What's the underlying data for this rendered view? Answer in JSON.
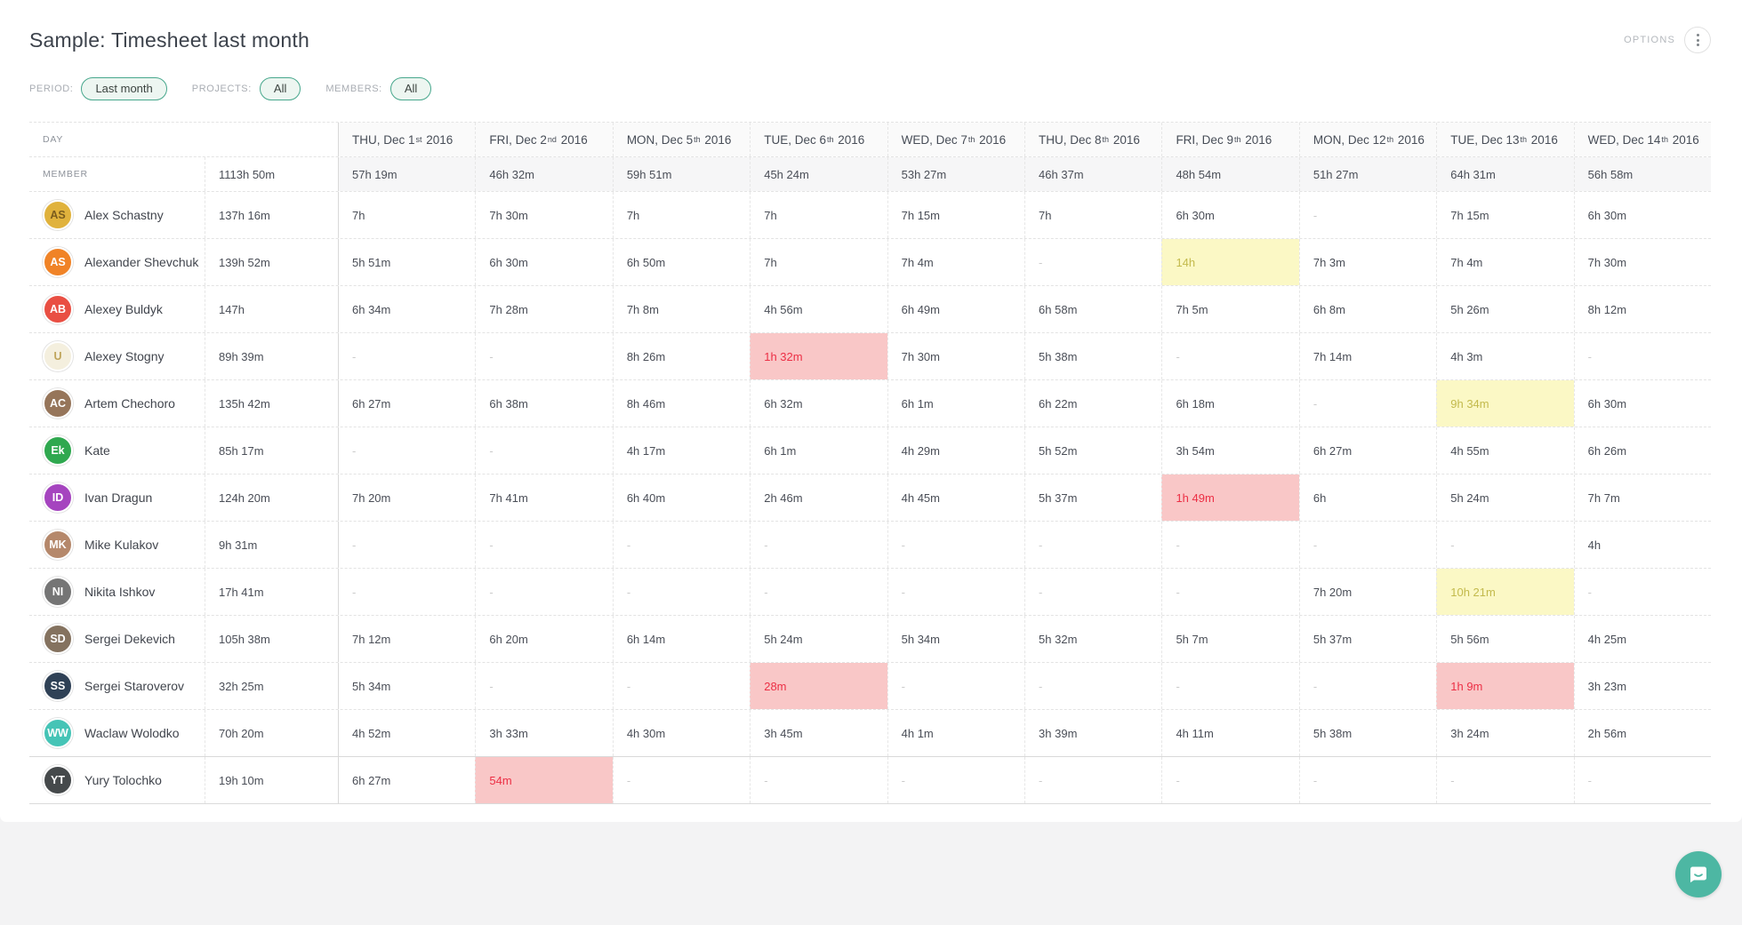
{
  "page": {
    "title": "Sample: Timesheet last month",
    "options_label": "OPTIONS"
  },
  "filters": [
    {
      "label": "PERIOD:",
      "value": "Last month"
    },
    {
      "label": "PROJECTS:",
      "value": "All"
    },
    {
      "label": "MEMBERS:",
      "value": "All"
    }
  ],
  "table": {
    "day_label": "DAY",
    "member_label": "MEMBER",
    "grand_total": "1113h 50m",
    "columns": [
      {
        "prefix": "THU, Dec 1",
        "ordinal": "st",
        "year": "2016",
        "total": "57h 19m"
      },
      {
        "prefix": "FRI, Dec 2",
        "ordinal": "nd",
        "year": "2016",
        "total": "46h 32m"
      },
      {
        "prefix": "MON, Dec 5",
        "ordinal": "th",
        "year": "2016",
        "total": "59h 51m"
      },
      {
        "prefix": "TUE, Dec 6",
        "ordinal": "th",
        "year": "2016",
        "total": "45h 24m"
      },
      {
        "prefix": "WED, Dec 7",
        "ordinal": "th",
        "year": "2016",
        "total": "53h 27m"
      },
      {
        "prefix": "THU, Dec 8",
        "ordinal": "th",
        "year": "2016",
        "total": "46h 37m"
      },
      {
        "prefix": "FRI, Dec 9",
        "ordinal": "th",
        "year": "2016",
        "total": "48h 54m"
      },
      {
        "prefix": "MON, Dec 12",
        "ordinal": "th",
        "year": "2016",
        "total": "51h 27m"
      },
      {
        "prefix": "TUE, Dec 13",
        "ordinal": "th",
        "year": "2016",
        "total": "64h 31m"
      },
      {
        "prefix": "WED, Dec 14",
        "ordinal": "th",
        "year": "2016",
        "total": "56h 58m"
      }
    ],
    "members": [
      {
        "name": "Alex Schastny",
        "total": "137h 16m",
        "avatar": {
          "kind": "photo",
          "text": "AS",
          "bg": "#E0B23C",
          "fg": "#7A5C1D"
        },
        "cells": [
          {
            "v": "7h"
          },
          {
            "v": "7h 30m"
          },
          {
            "v": "7h"
          },
          {
            "v": "7h"
          },
          {
            "v": "7h 15m"
          },
          {
            "v": "7h"
          },
          {
            "v": "6h 30m"
          },
          {
            "v": "-"
          },
          {
            "v": "7h 15m"
          },
          {
            "v": "6h 30m"
          }
        ]
      },
      {
        "name": "Alexander Shevchuk",
        "total": "139h 52m",
        "avatar": {
          "kind": "initials",
          "text": "AS",
          "bg": "#F08327",
          "fg": "#FFFFFF"
        },
        "cells": [
          {
            "v": "5h 51m"
          },
          {
            "v": "6h 30m"
          },
          {
            "v": "6h 50m"
          },
          {
            "v": "7h"
          },
          {
            "v": "7h 4m"
          },
          {
            "v": "-"
          },
          {
            "v": "14h",
            "hl": "yellow"
          },
          {
            "v": "7h 3m"
          },
          {
            "v": "7h 4m"
          },
          {
            "v": "7h 30m"
          }
        ]
      },
      {
        "name": "Alexey Buldyk",
        "total": "147h",
        "avatar": {
          "kind": "initials",
          "text": "AB",
          "bg": "#E94F43",
          "fg": "#FFFFFF"
        },
        "cells": [
          {
            "v": "6h 34m"
          },
          {
            "v": "7h 28m"
          },
          {
            "v": "7h 8m"
          },
          {
            "v": "4h 56m"
          },
          {
            "v": "6h 49m"
          },
          {
            "v": "6h 58m"
          },
          {
            "v": "7h 5m"
          },
          {
            "v": "6h 8m"
          },
          {
            "v": "5h 26m"
          },
          {
            "v": "8h 12m"
          }
        ]
      },
      {
        "name": "Alexey Stogny",
        "total": "89h 39m",
        "avatar": {
          "kind": "photo",
          "text": "U",
          "bg": "#F4EFDE",
          "fg": "#BFA45A"
        },
        "cells": [
          {
            "v": "-"
          },
          {
            "v": "-"
          },
          {
            "v": "8h 26m"
          },
          {
            "v": "1h 32m",
            "hl": "red"
          },
          {
            "v": "7h 30m"
          },
          {
            "v": "5h 38m"
          },
          {
            "v": "-"
          },
          {
            "v": "7h 14m"
          },
          {
            "v": "4h 3m"
          },
          {
            "v": "-"
          }
        ]
      },
      {
        "name": "Artem Chechoro",
        "total": "135h 42m",
        "avatar": {
          "kind": "photo",
          "text": "AC",
          "bg": "#96755A",
          "fg": "#FFFFFF"
        },
        "cells": [
          {
            "v": "6h 27m"
          },
          {
            "v": "6h 38m"
          },
          {
            "v": "8h 46m"
          },
          {
            "v": "6h 32m"
          },
          {
            "v": "6h 1m"
          },
          {
            "v": "6h 22m"
          },
          {
            "v": "6h 18m"
          },
          {
            "v": "-"
          },
          {
            "v": "9h 34m",
            "hl": "yellow"
          },
          {
            "v": "6h 30m"
          }
        ]
      },
      {
        "name": "Kate",
        "total": "85h 17m",
        "avatar": {
          "kind": "initials",
          "text": "Ek",
          "bg": "#2FA84F",
          "fg": "#FFFFFF"
        },
        "cells": [
          {
            "v": "-"
          },
          {
            "v": "-"
          },
          {
            "v": "4h 17m"
          },
          {
            "v": "6h 1m"
          },
          {
            "v": "4h 29m"
          },
          {
            "v": "5h 52m"
          },
          {
            "v": "3h 54m"
          },
          {
            "v": "6h 27m"
          },
          {
            "v": "4h 55m"
          },
          {
            "v": "6h 26m"
          }
        ]
      },
      {
        "name": "Ivan Dragun",
        "total": "124h 20m",
        "avatar": {
          "kind": "initials",
          "text": "ID",
          "bg": "#A544BF",
          "fg": "#FFFFFF"
        },
        "cells": [
          {
            "v": "7h 20m"
          },
          {
            "v": "7h 41m"
          },
          {
            "v": "6h 40m"
          },
          {
            "v": "2h 46m"
          },
          {
            "v": "4h 45m"
          },
          {
            "v": "5h 37m"
          },
          {
            "v": "1h 49m",
            "hl": "red"
          },
          {
            "v": "6h"
          },
          {
            "v": "5h 24m"
          },
          {
            "v": "7h 7m"
          }
        ]
      },
      {
        "name": "Mike Kulakov",
        "total": "9h 31m",
        "avatar": {
          "kind": "photo",
          "text": "MK",
          "bg": "#B5886B",
          "fg": "#FFFFFF"
        },
        "cells": [
          {
            "v": "-"
          },
          {
            "v": "-"
          },
          {
            "v": "-"
          },
          {
            "v": "-"
          },
          {
            "v": "-"
          },
          {
            "v": "-"
          },
          {
            "v": "-"
          },
          {
            "v": "-"
          },
          {
            "v": "-"
          },
          {
            "v": "4h"
          }
        ]
      },
      {
        "name": "Nikita Ishkov",
        "total": "17h 41m",
        "avatar": {
          "kind": "photo",
          "text": "NI",
          "bg": "#757575",
          "fg": "#FFFFFF"
        },
        "cells": [
          {
            "v": "-"
          },
          {
            "v": "-"
          },
          {
            "v": "-"
          },
          {
            "v": "-"
          },
          {
            "v": "-"
          },
          {
            "v": "-"
          },
          {
            "v": "-"
          },
          {
            "v": "7h 20m"
          },
          {
            "v": "10h 21m",
            "hl": "yellow"
          },
          {
            "v": "-"
          }
        ]
      },
      {
        "name": "Sergei Dekevich",
        "total": "105h 38m",
        "avatar": {
          "kind": "photo",
          "text": "SD",
          "bg": "#84725F",
          "fg": "#FFFFFF"
        },
        "cells": [
          {
            "v": "7h 12m"
          },
          {
            "v": "6h 20m"
          },
          {
            "v": "6h 14m"
          },
          {
            "v": "5h 24m"
          },
          {
            "v": "5h 34m"
          },
          {
            "v": "5h 32m"
          },
          {
            "v": "5h 7m"
          },
          {
            "v": "5h 37m"
          },
          {
            "v": "5h 56m"
          },
          {
            "v": "4h 25m"
          }
        ]
      },
      {
        "name": "Sergei Staroverov",
        "total": "32h 25m",
        "avatar": {
          "kind": "initials",
          "text": "SS",
          "bg": "#2F4156",
          "fg": "#FFFFFF"
        },
        "cells": [
          {
            "v": "5h 34m"
          },
          {
            "v": "-"
          },
          {
            "v": "-"
          },
          {
            "v": "28m",
            "hl": "red"
          },
          {
            "v": "-"
          },
          {
            "v": "-"
          },
          {
            "v": "-"
          },
          {
            "v": "-"
          },
          {
            "v": "1h 9m",
            "hl": "red"
          },
          {
            "v": "3h 23m"
          }
        ]
      },
      {
        "name": "Waclaw Wolodko",
        "total": "70h 20m",
        "avatar": {
          "kind": "photo",
          "text": "WW",
          "bg": "#45C4B6",
          "fg": "#FFFFFF"
        },
        "cells": [
          {
            "v": "4h 52m"
          },
          {
            "v": "3h 33m"
          },
          {
            "v": "4h 30m"
          },
          {
            "v": "3h 45m"
          },
          {
            "v": "4h 1m"
          },
          {
            "v": "3h 39m"
          },
          {
            "v": "4h 11m"
          },
          {
            "v": "5h 38m"
          },
          {
            "v": "3h 24m"
          },
          {
            "v": "2h 56m"
          }
        ]
      },
      {
        "name": "Yury Tolochko",
        "total": "19h 10m",
        "avatar": {
          "kind": "photo",
          "text": "YT",
          "bg": "#45494B",
          "fg": "#FFFFFF"
        },
        "cells": [
          {
            "v": "6h 27m"
          },
          {
            "v": "54m",
            "hl": "red"
          },
          {
            "v": "-"
          },
          {
            "v": "-"
          },
          {
            "v": "-"
          },
          {
            "v": "-"
          },
          {
            "v": "-"
          },
          {
            "v": "-"
          },
          {
            "v": "-"
          },
          {
            "v": "-"
          }
        ]
      }
    ]
  },
  "colors": {
    "accent_teal": "#47A78C",
    "pill_bg": "#EDF6F1",
    "highlight_yellow_bg": "#FBF8C5",
    "highlight_yellow_text": "#C3BA4C",
    "highlight_red_bg": "#F9C7C7",
    "highlight_red_text": "#EC2F45",
    "chat_button": "#4DB7A3",
    "footer_bg": "#F3F3F4"
  },
  "chat": {
    "tooltip": "chat"
  }
}
